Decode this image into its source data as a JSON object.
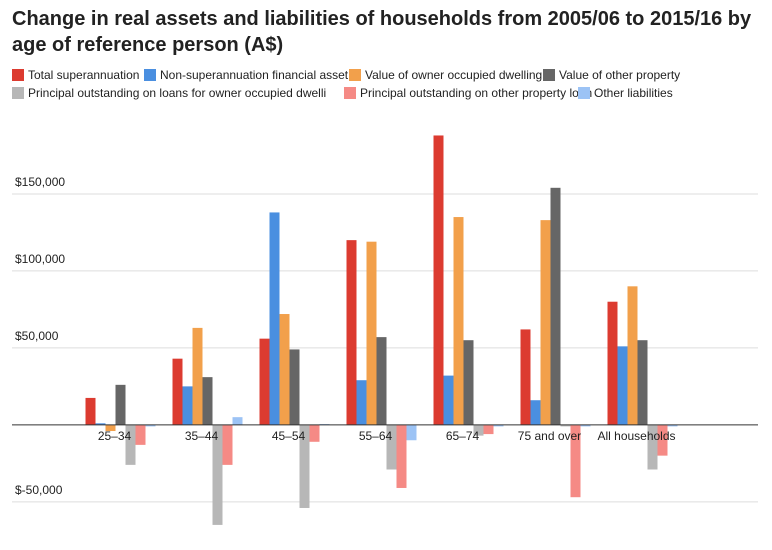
{
  "chart_data": {
    "type": "bar",
    "title": "Change in real assets and liabilities of households from 2005/06 to 2015/16 by age of reference person (A$)",
    "categories": [
      "25–34",
      "35–44",
      "45–54",
      "55–64",
      "65–74",
      "75 and over",
      "All households"
    ],
    "series": [
      {
        "name": "Total superannuation",
        "color": "#dc3b30",
        "values": [
          17500,
          43000,
          56000,
          120000,
          188000,
          62000,
          80000
        ]
      },
      {
        "name": "Non-superannuation financial asset",
        "color": "#4a8fe0",
        "values": [
          1000,
          25000,
          138000,
          29000,
          32000,
          16000,
          51000
        ]
      },
      {
        "name": "Value of owner occupied dwelling",
        "color": "#f2a04b",
        "values": [
          -4000,
          63000,
          72000,
          119000,
          135000,
          133000,
          90000
        ]
      },
      {
        "name": "Value of other property",
        "color": "#666666",
        "values": [
          26000,
          31000,
          49000,
          57000,
          55000,
          154000,
          55000
        ]
      },
      {
        "name": "Principal outstanding on loans for owner occupied dwelli",
        "color": "#b7b7b7",
        "values": [
          -26000,
          -65000,
          -54000,
          -29000,
          -7000,
          -1000,
          -29000
        ]
      },
      {
        "name": "Principal outstanding on other property loan",
        "color": "#f58a85",
        "values": [
          -13000,
          -26000,
          -11000,
          -41000,
          -6000,
          -47000,
          -20000
        ]
      },
      {
        "name": "Other liabilities",
        "color": "#9cc3f5",
        "values": [
          -1000,
          5000,
          500,
          -10000,
          -1000,
          -1000,
          -1000
        ]
      }
    ],
    "ylim": [
      -80000,
      200000
    ],
    "yticks": [
      {
        "value": -50000,
        "label": "$-50,000"
      },
      {
        "value": 50000,
        "label": "$50,000"
      },
      {
        "value": 100000,
        "label": "$100,000"
      },
      {
        "value": 150000,
        "label": "$150,000"
      }
    ],
    "grid": true
  }
}
